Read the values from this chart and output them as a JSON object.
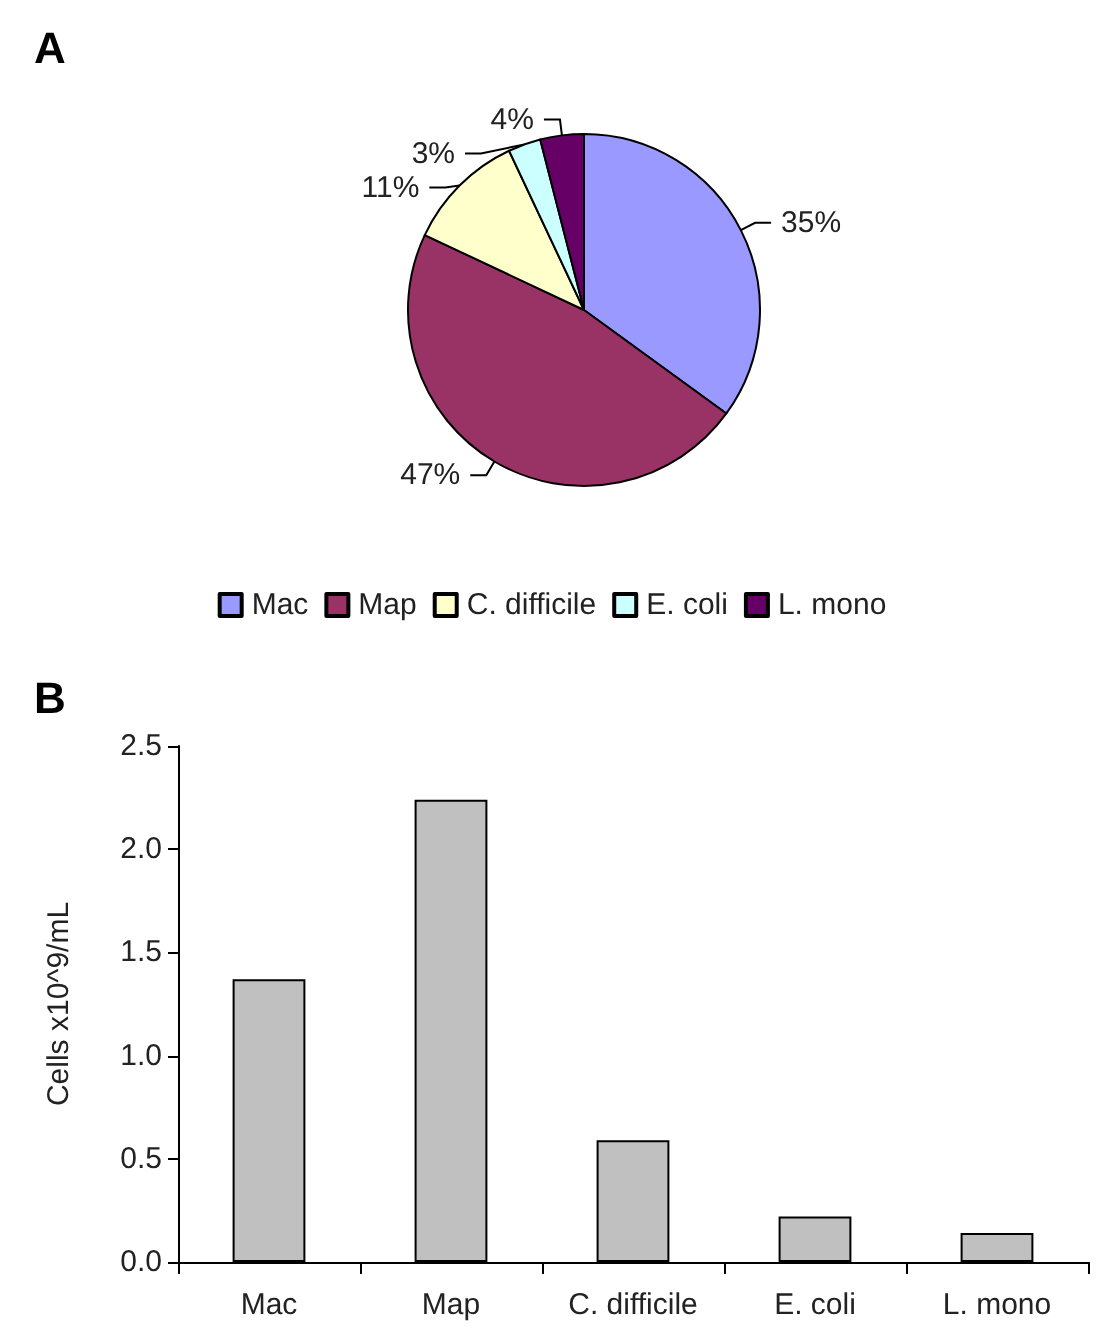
{
  "chart_data": [
    {
      "type": "pie",
      "title": "A",
      "categories": [
        "Mac",
        "Map",
        "C. difficile",
        "E. coli",
        "L. mono"
      ],
      "values": [
        35,
        47,
        11,
        3,
        4
      ],
      "colors": [
        "#9999ff",
        "#993366",
        "#ffffcc",
        "#ccffff",
        "#660066"
      ],
      "value_labels": [
        "35%",
        "47%",
        "11%",
        "3%",
        "4%"
      ],
      "legend": "bottom"
    },
    {
      "type": "bar",
      "title": "B",
      "ylabel": "Cells x10^9/mL",
      "categories": [
        "Mac",
        "Map",
        "C. difficile",
        "E. coli",
        "L. mono"
      ],
      "values": [
        1.37,
        2.24,
        0.59,
        0.22,
        0.14
      ],
      "color": "#c0c0c0",
      "ylim": [
        0,
        2.5
      ],
      "yticks": [
        {
          "value": 0,
          "label": "0.0"
        },
        {
          "value": 0.5,
          "label": "0.5"
        },
        {
          "value": 1,
          "label": "1.0"
        },
        {
          "value": 1.5,
          "label": "1.5"
        },
        {
          "value": 2,
          "label": "2.0"
        },
        {
          "value": 2.5,
          "label": "2.5"
        }
      ]
    }
  ]
}
